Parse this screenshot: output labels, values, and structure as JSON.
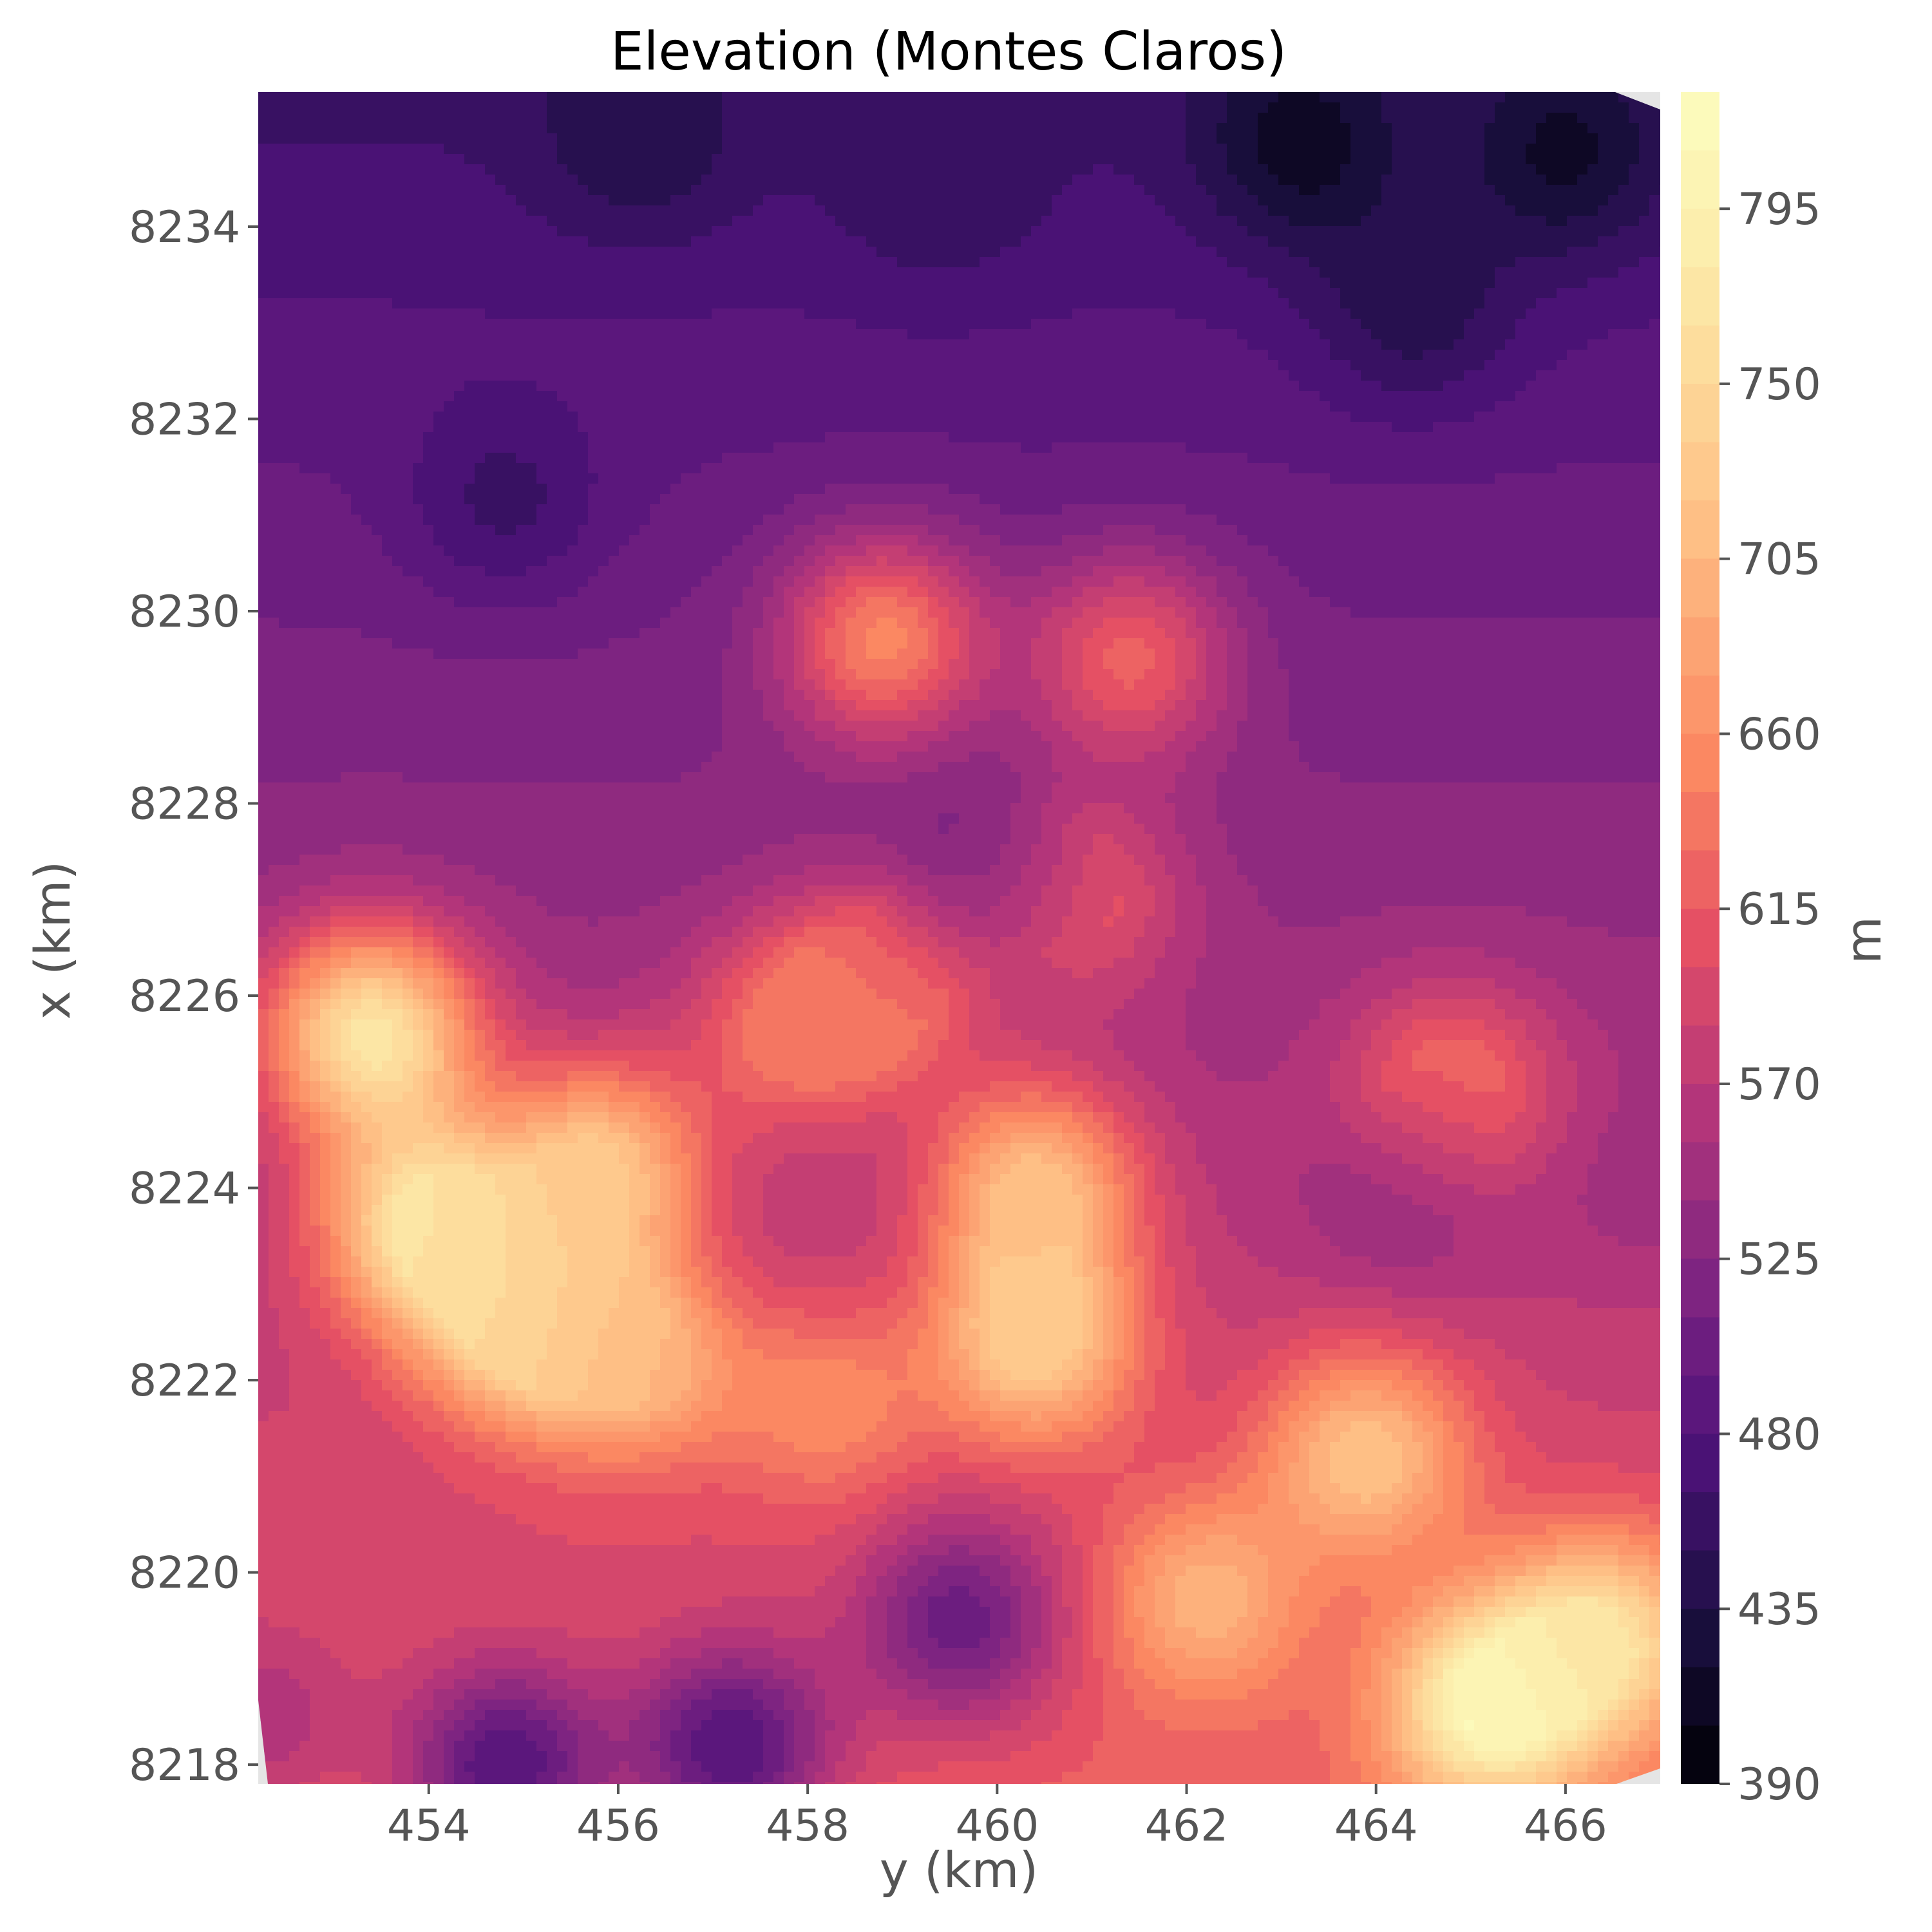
{
  "chart_data": {
    "type": "heatmap",
    "subtype": "filled-contour",
    "title": "Elevation (Montes Claros)",
    "xlabel": "y (km)",
    "ylabel": "x (km)",
    "xlim": [
      452.2,
      467.0
    ],
    "ylim": [
      8217.8,
      8235.4
    ],
    "xticks": [
      454,
      456,
      458,
      460,
      462,
      464,
      466
    ],
    "yticks": [
      8218,
      8220,
      8222,
      8224,
      8226,
      8228,
      8230,
      8232,
      8234
    ],
    "colormap": "magma",
    "colorbar": {
      "label": "m",
      "range": [
        390,
        825
      ],
      "ticks": [
        390,
        435,
        480,
        525,
        570,
        615,
        660,
        705,
        750,
        795
      ],
      "levels": 29
    },
    "plot_background": "#e5e5e5",
    "grid": false,
    "features": [
      {
        "y": 453.4,
        "x": 8225.6,
        "value": 770
      },
      {
        "y": 454.0,
        "x": 8223.6,
        "value": 770
      },
      {
        "y": 455.0,
        "x": 8222.6,
        "value": 750
      },
      {
        "y": 455.8,
        "x": 8224.2,
        "value": 720
      },
      {
        "y": 456.2,
        "x": 8222.2,
        "value": 700
      },
      {
        "y": 458.8,
        "x": 8229.7,
        "value": 650
      },
      {
        "y": 458.8,
        "x": 8226.1,
        "value": 640
      },
      {
        "y": 457.8,
        "x": 8225.6,
        "value": 630
      },
      {
        "y": 458.2,
        "x": 8221.7,
        "value": 655
      },
      {
        "y": 460.4,
        "x": 8224.0,
        "value": 710
      },
      {
        "y": 460.4,
        "x": 8222.4,
        "value": 735
      },
      {
        "y": 460.9,
        "x": 8227.0,
        "value": 615
      },
      {
        "y": 461.4,
        "x": 8229.5,
        "value": 620
      },
      {
        "y": 464.8,
        "x": 8225.0,
        "value": 640
      },
      {
        "y": 465.2,
        "x": 8218.6,
        "value": 815
      },
      {
        "y": 466.4,
        "x": 8219.3,
        "value": 760
      },
      {
        "y": 463.9,
        "x": 8221.2,
        "value": 720
      },
      {
        "y": 462.2,
        "x": 8219.7,
        "value": 700
      },
      {
        "y": 463.2,
        "x": 8234.9,
        "value": 410
      },
      {
        "y": 466.0,
        "x": 8234.8,
        "value": 415
      },
      {
        "y": 456.2,
        "x": 8235.0,
        "value": 435
      },
      {
        "y": 459.4,
        "x": 8234.5,
        "value": 450
      },
      {
        "y": 454.8,
        "x": 8231.2,
        "value": 460
      },
      {
        "y": 464.4,
        "x": 8233.2,
        "value": 440
      },
      {
        "y": 459.8,
        "x": 8227.4,
        "value": 500
      },
      {
        "y": 464.3,
        "x": 8224.0,
        "value": 530
      },
      {
        "y": 466.8,
        "x": 8224.2,
        "value": 545
      },
      {
        "y": 454.8,
        "x": 8218.0,
        "value": 480
      },
      {
        "y": 457.2,
        "x": 8218.2,
        "value": 480
      },
      {
        "y": 459.6,
        "x": 8219.5,
        "value": 500
      },
      {
        "y": 452.2,
        "x": 8218.5,
        "value": 560
      }
    ]
  }
}
